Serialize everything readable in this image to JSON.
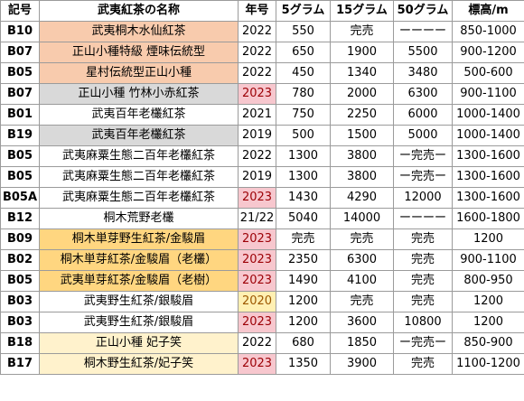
{
  "headers": [
    "記号",
    "武夷紅茶の名称",
    "年号",
    "5グラム",
    "15グラム",
    "50グラム",
    "標高/m"
  ],
  "rows": [
    {
      "code": "B10",
      "name": "武夷桐木水仙紅茶",
      "year": "2022",
      "g5": "550",
      "g15": "完売",
      "g50": "ーーーー",
      "alt": "850-1000",
      "name_fill": "orange",
      "year_fill": ""
    },
    {
      "code": "B07",
      "name": "正山小種特級 煙味伝統型",
      "year": "2022",
      "g5": "650",
      "g15": "1900",
      "g50": "5500",
      "alt": "900-1200",
      "name_fill": "orange",
      "year_fill": ""
    },
    {
      "code": "B05",
      "name": "星村伝統型正山小種",
      "year": "2022",
      "g5": "450",
      "g15": "1340",
      "g50": "3480",
      "alt": "500-600",
      "name_fill": "orange",
      "year_fill": ""
    },
    {
      "code": "B07",
      "name": "正山小種 竹林小赤紅茶",
      "year": "2023",
      "g5": "780",
      "g15": "2000",
      "g50": "6300",
      "alt": "900-1100",
      "name_fill": "grey",
      "year_fill": "red"
    },
    {
      "code": "B01",
      "name": "武夷百年老欉紅茶",
      "year": "2021",
      "g5": "750",
      "g15": "2250",
      "g50": "6000",
      "alt": "1000-1400",
      "name_fill": "",
      "year_fill": ""
    },
    {
      "code": "B19",
      "name": "武夷百年老欉紅茶",
      "year": "2019",
      "g5": "500",
      "g15": "1500",
      "g50": "5000",
      "alt": "1000-1400",
      "name_fill": "grey",
      "year_fill": ""
    },
    {
      "code": "B05",
      "name": "武夷麻粟生態二百年老欉紅茶",
      "year": "2022",
      "g5": "1300",
      "g15": "3800",
      "g50": "ー完売ー",
      "alt": "1300-1600",
      "name_fill": "",
      "year_fill": ""
    },
    {
      "code": "B05",
      "name": "武夷麻粟生態二百年老欉紅茶",
      "year": "2019",
      "g5": "1300",
      "g15": "3800",
      "g50": "ー完売ー",
      "alt": "1300-1600",
      "name_fill": "",
      "year_fill": ""
    },
    {
      "code": "B05A",
      "name": "武夷麻粟生態二百年老欉紅茶",
      "year": "2023",
      "g5": "1430",
      "g15": "4290",
      "g50": "12000",
      "alt": "1300-1600",
      "name_fill": "",
      "year_fill": "red"
    },
    {
      "code": "B12",
      "name": "桐木荒野老欉",
      "year": "21/22",
      "g5": "5040",
      "g15": "14000",
      "g50": "ーーーー",
      "alt": "1600-1800",
      "name_fill": "",
      "year_fill": ""
    },
    {
      "code": "B09",
      "name": "桐木単芽野生紅茶/金駿眉",
      "year": "2023",
      "g5": "完売",
      "g15": "完売",
      "g50": "完売",
      "alt": "1200",
      "name_fill": "gold",
      "year_fill": "red"
    },
    {
      "code": "B02",
      "name": "桐木単芽紅茶/金駿眉（老欉）",
      "year": "2023",
      "g5": "2350",
      "g15": "6300",
      "g50": "完売",
      "alt": "900-1100",
      "name_fill": "gold",
      "year_fill": "red"
    },
    {
      "code": "B05",
      "name": "武夷単芽紅茶/金駿眉（老樹）",
      "year": "2023",
      "g5": "1490",
      "g15": "4100",
      "g50": "完売",
      "alt": "800-950",
      "name_fill": "gold",
      "year_fill": "red"
    },
    {
      "code": "B03",
      "name": "武夷野生紅茶/銀駿眉",
      "year": "2020",
      "g5": "1200",
      "g15": "完売",
      "g50": "完売",
      "alt": "1200",
      "name_fill": "",
      "year_fill": "yellow"
    },
    {
      "code": "B03",
      "name": "武夷野生紅茶/銀駿眉",
      "year": "2023",
      "g5": "1200",
      "g15": "3600",
      "g50": "10800",
      "alt": "1200",
      "name_fill": "",
      "year_fill": "red"
    },
    {
      "code": "B18",
      "name": "正山小種 妃子笑",
      "year": "2022",
      "g5": "680",
      "g15": "1850",
      "g50": "ー完売ー",
      "alt": "850-900",
      "name_fill": "lightyellow",
      "year_fill": ""
    },
    {
      "code": "B17",
      "name": "桐木野生紅茶/妃子笑",
      "year": "2023",
      "g5": "1350",
      "g15": "3900",
      "g50": "完売",
      "alt": "1100-1200",
      "name_fill": "lightyellow",
      "year_fill": "red"
    }
  ]
}
